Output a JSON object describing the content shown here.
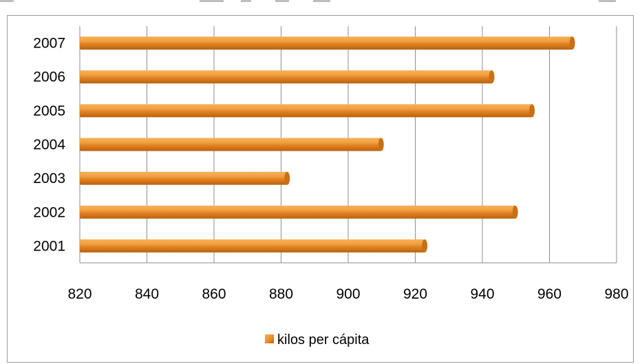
{
  "chart_data": {
    "type": "bar",
    "orientation": "horizontal",
    "categories": [
      "2001",
      "2002",
      "2003",
      "2004",
      "2005",
      "2006",
      "2007"
    ],
    "series": [
      {
        "name": "kilos per cápita",
        "values": [
          923,
          950,
          882,
          910,
          955,
          943,
          967
        ],
        "color": "#e8892a"
      }
    ],
    "xlim": [
      820,
      980
    ],
    "xticks": [
      820,
      840,
      860,
      880,
      900,
      920,
      940,
      960,
      980
    ],
    "grid": "vertical",
    "legend_position": "bottom"
  }
}
